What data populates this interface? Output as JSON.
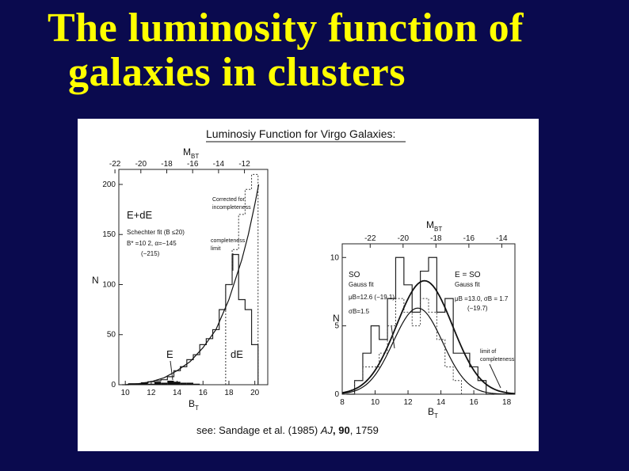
{
  "slide": {
    "title_line1": "The luminosity function of",
    "title_line2": "galaxies in clusters",
    "title_color": "#ffff00",
    "background": "#0a0a4e"
  },
  "figure": {
    "heading": "Luminosiy Function for Virgo Galaxies:",
    "citation_pre": "see: Sandage et al. (1985) ",
    "citation_journal": "AJ",
    "citation_volume": ", 90",
    "citation_pages": ", 1759"
  },
  "chart_data": [
    {
      "type": "bar",
      "panel": "left",
      "top_axis_label": "M",
      "top_axis_sub": "BT",
      "top_ticks": [
        "-22",
        "-20",
        "-18",
        "-16",
        "-14",
        "-12"
      ],
      "top_tick_mag": [
        -22,
        -20,
        -18,
        -16,
        -14,
        -12
      ],
      "xlabel": "B",
      "xlabel_sub": "T",
      "ylabel": "N",
      "xlim": [
        9.5,
        21
      ],
      "ylim": [
        0,
        215
      ],
      "xticks": [
        "10",
        "12",
        "14",
        "16",
        "18",
        "20"
      ],
      "yticks": [
        "0",
        "50",
        "100",
        "150",
        "200"
      ],
      "annotations": {
        "type_label": "E+dE",
        "fit_line1": "Schechter fit (B ≤20)",
        "fit_line2": "B* =10 2, α=−145",
        "fit_line3": "(−215)",
        "corrected": "Corrected for incompleteness",
        "completeness": "completeness limit",
        "E": "E",
        "dE": "dE"
      },
      "series": [
        {
          "name": "E+dE",
          "x": [
            10,
            10.5,
            11,
            11.5,
            12,
            12.5,
            13,
            13.5,
            14,
            14.5,
            15,
            15.5,
            16,
            16.5,
            17,
            17.5,
            18,
            18.5,
            19,
            19.5,
            20
          ],
          "values": [
            0,
            1,
            1,
            2,
            3,
            4,
            5,
            8,
            14,
            18,
            25,
            30,
            40,
            46,
            55,
            75,
            100,
            130,
            85,
            75,
            40
          ]
        },
        {
          "name": "E",
          "x": [
            10,
            10.5,
            11,
            11.5,
            12,
            12.5,
            13,
            13.5,
            14,
            14.5,
            15,
            15.5
          ],
          "values": [
            0,
            1,
            1,
            2,
            1,
            3,
            2,
            4,
            3,
            2,
            2,
            1
          ]
        },
        {
          "name": "corrected",
          "x": [
            18,
            18.5,
            19,
            19.5,
            20
          ],
          "values": [
            100,
            135,
            170,
            195,
            210
          ]
        }
      ],
      "fit": {
        "name": "Schechter fit",
        "x": [
          10,
          11,
          12,
          13,
          14,
          15,
          16,
          17,
          18,
          19,
          19.5,
          20,
          20.3
        ],
        "values": [
          0,
          1,
          3,
          7,
          14,
          23,
          37,
          55,
          85,
          125,
          150,
          180,
          200
        ]
      }
    },
    {
      "type": "bar",
      "panel": "right",
      "top_axis_label": "M",
      "top_axis_sub": "BT",
      "top_ticks": [
        "-22",
        "-20",
        "-18",
        "-16",
        "-14"
      ],
      "top_tick_mag": [
        -22,
        -20,
        -18,
        -16,
        -14
      ],
      "xlabel": "B",
      "xlabel_sub": "T",
      "ylabel": "N",
      "xlim": [
        8,
        18.5
      ],
      "ylim": [
        0,
        11
      ],
      "xticks": [
        "8",
        "10",
        "12",
        "14",
        "16",
        "18"
      ],
      "yticks": [
        "0",
        "5",
        "10"
      ],
      "annotations": {
        "so_label": "SO",
        "so_fit1": "Gauss fit",
        "so_fit2": "μB=12.6 (−19.1),",
        "so_fit3": "σB=1.5",
        "e_label": "E = SO",
        "e_fit1": "Gauss fit",
        "e_fit2": "μB =13.0, σB = 1.7",
        "e_fit3": "(−19.7)",
        "limit": "limit of completeness"
      },
      "series": [
        {
          "name": "E+SO",
          "x": [
            8.5,
            9,
            9.5,
            10,
            10.5,
            11,
            11.5,
            12,
            12.5,
            13,
            13.5,
            14,
            14.5,
            15,
            15.5,
            16,
            16.5,
            17
          ],
          "values": [
            0,
            1,
            3,
            5,
            4,
            7,
            10,
            8,
            6,
            9,
            10,
            6,
            7,
            3,
            3,
            2,
            1,
            0
          ]
        },
        {
          "name": "SO",
          "x": [
            9,
            9.5,
            10,
            10.5,
            11,
            11.5,
            12,
            12.5,
            13,
            13.5,
            14,
            14.5,
            15
          ],
          "values": [
            1,
            2,
            2,
            3,
            5,
            7,
            6,
            5,
            7,
            6,
            4,
            2,
            1
          ]
        }
      ],
      "fits": [
        {
          "name": "E + SO Gauss fit",
          "mu": 13.0,
          "sigma": 1.7,
          "peak": 8.3
        },
        {
          "name": "SO Gauss fit",
          "mu": 12.6,
          "sigma": 1.5,
          "peak": 6.3
        }
      ]
    }
  ]
}
